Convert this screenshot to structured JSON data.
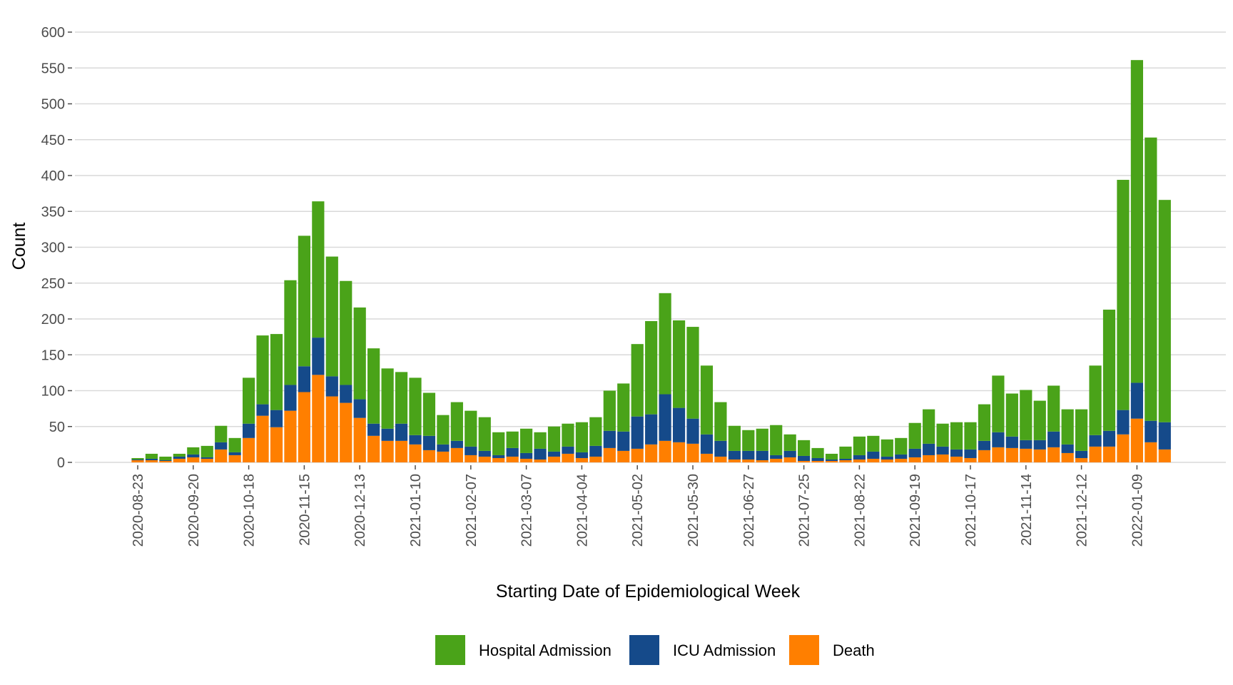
{
  "chart_data": {
    "type": "bar",
    "stacked": true,
    "xlabel": "Starting Date of Epidemiological Week",
    "ylabel": "Count",
    "ylim": [
      0,
      600
    ],
    "yticks": [
      0,
      50,
      100,
      150,
      200,
      250,
      300,
      350,
      400,
      450,
      500,
      550,
      600
    ],
    "grid": "horizontal",
    "legend_position": "bottom",
    "x_tick_labels": [
      "2020-08-23",
      "2020-09-20",
      "2020-10-18",
      "2020-11-15",
      "2020-12-13",
      "2021-01-10",
      "2021-02-07",
      "2021-03-07",
      "2021-04-04",
      "2021-05-02",
      "2021-05-30",
      "2021-06-27",
      "2021-07-25",
      "2021-08-22",
      "2021-09-19",
      "2021-10-17",
      "2021-11-14",
      "2021-12-12",
      "2022-01-09"
    ],
    "x_tick_every": 4,
    "categories": [
      "2020-08-23",
      "2020-08-30",
      "2020-09-06",
      "2020-09-13",
      "2020-09-20",
      "2020-09-27",
      "2020-10-04",
      "2020-10-11",
      "2020-10-18",
      "2020-10-25",
      "2020-11-01",
      "2020-11-08",
      "2020-11-15",
      "2020-11-22",
      "2020-11-29",
      "2020-12-06",
      "2020-12-13",
      "2020-12-20",
      "2020-12-27",
      "2021-01-03",
      "2021-01-10",
      "2021-01-17",
      "2021-01-24",
      "2021-01-31",
      "2021-02-07",
      "2021-02-14",
      "2021-02-21",
      "2021-02-28",
      "2021-03-07",
      "2021-03-14",
      "2021-03-21",
      "2021-03-28",
      "2021-04-04",
      "2021-04-11",
      "2021-04-18",
      "2021-04-25",
      "2021-05-02",
      "2021-05-09",
      "2021-05-16",
      "2021-05-23",
      "2021-05-30",
      "2021-06-06",
      "2021-06-13",
      "2021-06-20",
      "2021-06-27",
      "2021-07-04",
      "2021-07-11",
      "2021-07-18",
      "2021-07-25",
      "2021-08-01",
      "2021-08-08",
      "2021-08-15",
      "2021-08-22",
      "2021-08-29",
      "2021-09-05",
      "2021-09-12",
      "2021-09-19",
      "2021-09-26",
      "2021-10-03",
      "2021-10-10",
      "2021-10-17",
      "2021-10-24",
      "2021-10-31",
      "2021-11-07",
      "2021-11-14",
      "2021-11-21",
      "2021-11-28",
      "2021-12-05",
      "2021-12-12",
      "2021-12-19",
      "2021-12-26",
      "2022-01-02",
      "2022-01-09",
      "2022-01-16",
      "2022-01-23"
    ],
    "series": [
      {
        "name": "Death",
        "color": "#ff7f00",
        "values": [
          3,
          3,
          2,
          5,
          7,
          5,
          18,
          10,
          34,
          65,
          49,
          72,
          98,
          122,
          92,
          83,
          62,
          37,
          30,
          30,
          25,
          17,
          15,
          20,
          10,
          8,
          6,
          8,
          5,
          4,
          8,
          12,
          6,
          8,
          20,
          16,
          19,
          25,
          30,
          28,
          26,
          12,
          8,
          4,
          4,
          3,
          5,
          7,
          2,
          2,
          2,
          3,
          4,
          5,
          4,
          5,
          7,
          10,
          11,
          8,
          6,
          17,
          21,
          20,
          19,
          18,
          21,
          13,
          6,
          22,
          22,
          39,
          61,
          28,
          18
        ]
      },
      {
        "name": "ICU Admission",
        "color": "#154a8a",
        "values": [
          1,
          2,
          1,
          3,
          4,
          2,
          10,
          4,
          20,
          16,
          24,
          36,
          36,
          52,
          28,
          25,
          26,
          17,
          17,
          24,
          13,
          20,
          10,
          10,
          12,
          8,
          4,
          12,
          8,
          15,
          7,
          10,
          8,
          15,
          24,
          27,
          45,
          42,
          65,
          48,
          35,
          27,
          22,
          12,
          12,
          13,
          5,
          9,
          7,
          4,
          2,
          2,
          6,
          10,
          4,
          6,
          12,
          16,
          11,
          10,
          12,
          13,
          21,
          16,
          12,
          13,
          22,
          12,
          10,
          16,
          22,
          34,
          50,
          30,
          38
        ]
      },
      {
        "name": "Hospital Admission",
        "color": "#4aa319",
        "values": [
          2,
          7,
          5,
          4,
          10,
          16,
          23,
          20,
          64,
          96,
          106,
          146,
          182,
          190,
          167,
          145,
          128,
          105,
          84,
          72,
          80,
          60,
          41,
          54,
          50,
          47,
          32,
          23,
          34,
          23,
          35,
          32,
          42,
          40,
          56,
          67,
          101,
          130,
          141,
          122,
          128,
          96,
          54,
          35,
          29,
          31,
          42,
          23,
          22,
          14,
          8,
          17,
          26,
          22,
          24,
          23,
          36,
          48,
          32,
          38,
          38,
          51,
          79,
          60,
          70,
          55,
          64,
          49,
          58,
          97,
          169,
          321,
          450,
          395,
          310
        ]
      }
    ]
  }
}
